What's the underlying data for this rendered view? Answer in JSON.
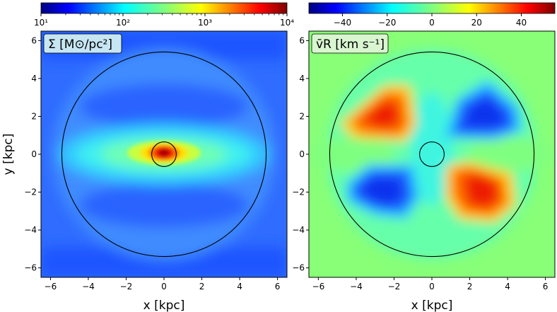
{
  "chart_data": [
    {
      "type": "heatmap",
      "title": "",
      "panel_label": "Σ [M⊙/pc²]",
      "xlabel": "x [kpc]",
      "ylabel": "y [kpc]",
      "xlim": [
        -6.5,
        6.5
      ],
      "ylim": [
        -6.5,
        6.5
      ],
      "xticks": [
        -6,
        -4,
        -2,
        0,
        2,
        4,
        6
      ],
      "yticks": [
        -6,
        -4,
        -2,
        0,
        2,
        4,
        6
      ],
      "colorbar": {
        "scale": "log",
        "range": [
          10,
          10000
        ],
        "ticks": [
          10,
          100,
          1000,
          10000
        ],
        "tick_labels": [
          "10¹",
          "10²",
          "10³",
          "10⁴"
        ],
        "colormap": "jet"
      },
      "circles": [
        {
          "center": [
            0,
            0
          ],
          "radius": 5.4
        },
        {
          "center": [
            0,
            0
          ],
          "radius": 0.65
        }
      ]
    },
    {
      "type": "heatmap",
      "title": "",
      "panel_label": "v̄R [km s⁻¹]",
      "xlabel": "x [kpc]",
      "ylabel": "",
      "xlim": [
        -6.5,
        6.5
      ],
      "ylim": [
        -6.5,
        6.5
      ],
      "xticks": [
        -6,
        -4,
        -2,
        0,
        2,
        4,
        6
      ],
      "yticks": [
        -6,
        -4,
        -2,
        0,
        2,
        4,
        6
      ],
      "colorbar": {
        "scale": "linear",
        "range": [
          -55,
          55
        ],
        "ticks": [
          -40,
          -20,
          0,
          20,
          40
        ],
        "tick_labels": [
          "−40",
          "−20",
          "0",
          "20",
          "40"
        ],
        "colormap": "jet"
      },
      "circles": [
        {
          "center": [
            0,
            0
          ],
          "radius": 5.4
        },
        {
          "center": [
            0,
            0
          ],
          "radius": 0.65
        }
      ]
    }
  ],
  "tick_labels": {
    "x": [
      "−6",
      "−4",
      "−2",
      "0",
      "2",
      "4",
      "6"
    ],
    "y": [
      "−6",
      "−4",
      "−2",
      "0",
      "2",
      "4",
      "6"
    ]
  }
}
